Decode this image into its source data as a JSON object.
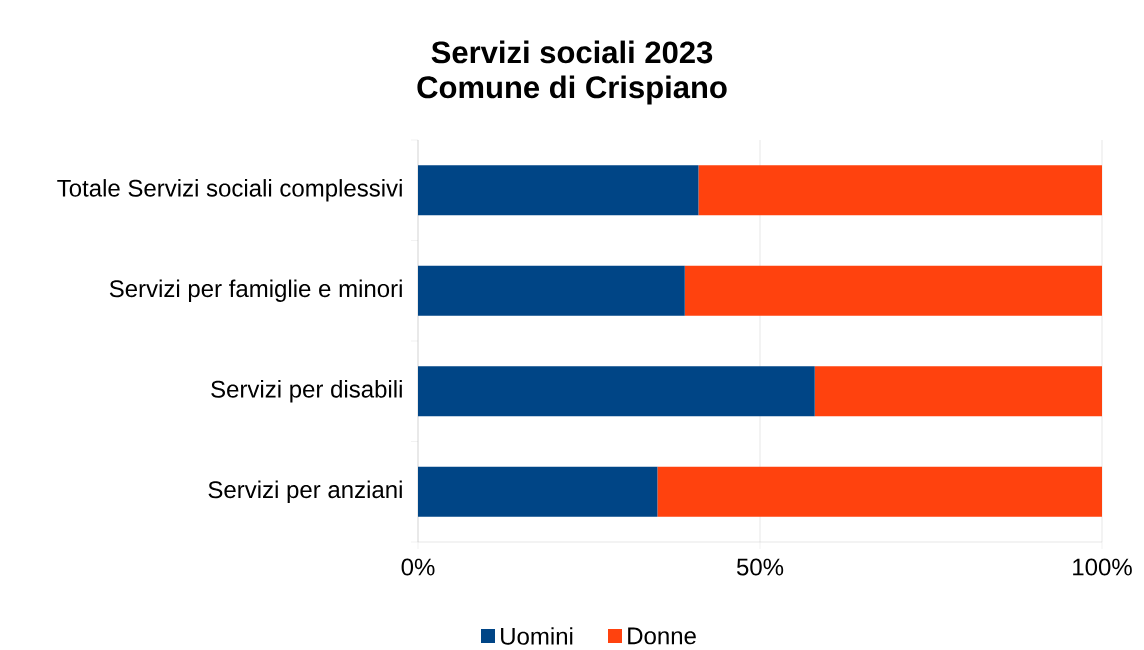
{
  "chart_data": {
    "type": "bar",
    "orientation": "horizontal",
    "stacked": true,
    "title": "Servizi sociali 2023",
    "subtitle": "Comune di Crispiano",
    "categories": [
      "Totale Servizi sociali complessivi",
      "Servizi per famiglie e minori",
      "Servizi per disabili",
      "Servizi per anziani"
    ],
    "series": [
      {
        "name": "Uomini",
        "color": "#004586",
        "values": [
          41,
          39,
          58,
          35
        ]
      },
      {
        "name": "Donne",
        "color": "#ff420e",
        "values": [
          59,
          61,
          42,
          65
        ]
      }
    ],
    "xlim": [
      0,
      100
    ],
    "xticks": [
      {
        "value": 0,
        "label": "0%"
      },
      {
        "value": 50,
        "label": "50%"
      },
      {
        "value": 100,
        "label": "100%"
      }
    ],
    "grid": "x",
    "legend": "bottom"
  }
}
